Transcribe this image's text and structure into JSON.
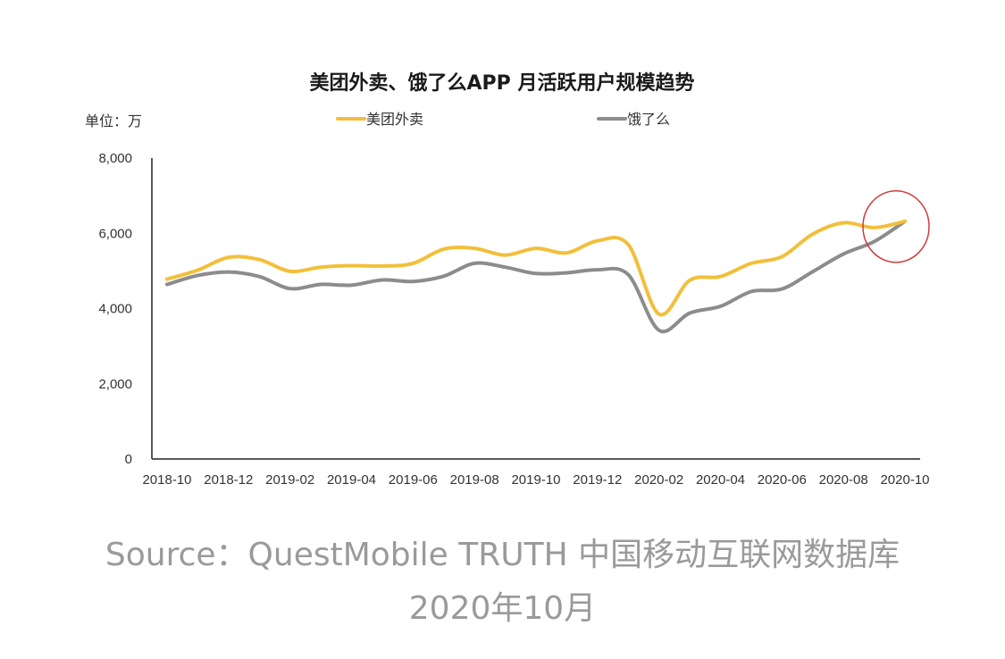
{
  "chart_data": {
    "type": "line",
    "title": "美团外卖、饿了么APP 月活跃用户规模趋势",
    "unit_label": "单位：万",
    "xlabel": "",
    "ylabel": "",
    "ylim": [
      0,
      8000
    ],
    "yticks": [
      0,
      2000,
      4000,
      6000,
      8000
    ],
    "ytick_labels": [
      "0",
      "2,000",
      "4,000",
      "6,000",
      "8,000"
    ],
    "x": [
      "2018-10",
      "2018-11",
      "2018-12",
      "2019-01",
      "2019-02",
      "2019-03",
      "2019-04",
      "2019-05",
      "2019-06",
      "2019-07",
      "2019-08",
      "2019-09",
      "2019-10",
      "2019-11",
      "2019-12",
      "2020-01",
      "2020-02",
      "2020-03",
      "2020-04",
      "2020-05",
      "2020-06",
      "2020-07",
      "2020-08",
      "2020-09",
      "2020-10"
    ],
    "xtick_labels": [
      "2018-10",
      "2018-12",
      "2019-02",
      "2019-04",
      "2019-06",
      "2019-08",
      "2019-10",
      "2019-12",
      "2020-02",
      "2020-04",
      "2020-06",
      "2020-08",
      "2020-10"
    ],
    "grid": false,
    "legend_position": "top",
    "series": [
      {
        "name": "美团外卖",
        "color": "#f2bf3a",
        "values": [
          4780,
          5020,
          5360,
          5300,
          4990,
          5100,
          5140,
          5130,
          5200,
          5580,
          5600,
          5420,
          5600,
          5480,
          5800,
          5700,
          3850,
          4750,
          4850,
          5200,
          5380,
          5980,
          6280,
          6150,
          6320
        ]
      },
      {
        "name": "饿了么",
        "color": "#8c8c8c",
        "values": [
          4640,
          4880,
          4970,
          4850,
          4530,
          4640,
          4620,
          4760,
          4720,
          4860,
          5200,
          5100,
          4930,
          4950,
          5030,
          4900,
          3420,
          3880,
          4060,
          4450,
          4520,
          4980,
          5450,
          5780,
          6320
        ]
      }
    ],
    "highlight": {
      "shape": "circle",
      "color": "#d23a3a",
      "target": "2020-10"
    }
  },
  "source": {
    "line1": "Source：QuestMobile TRUTH 中国移动互联网数据库",
    "line2": "2020年10月"
  }
}
